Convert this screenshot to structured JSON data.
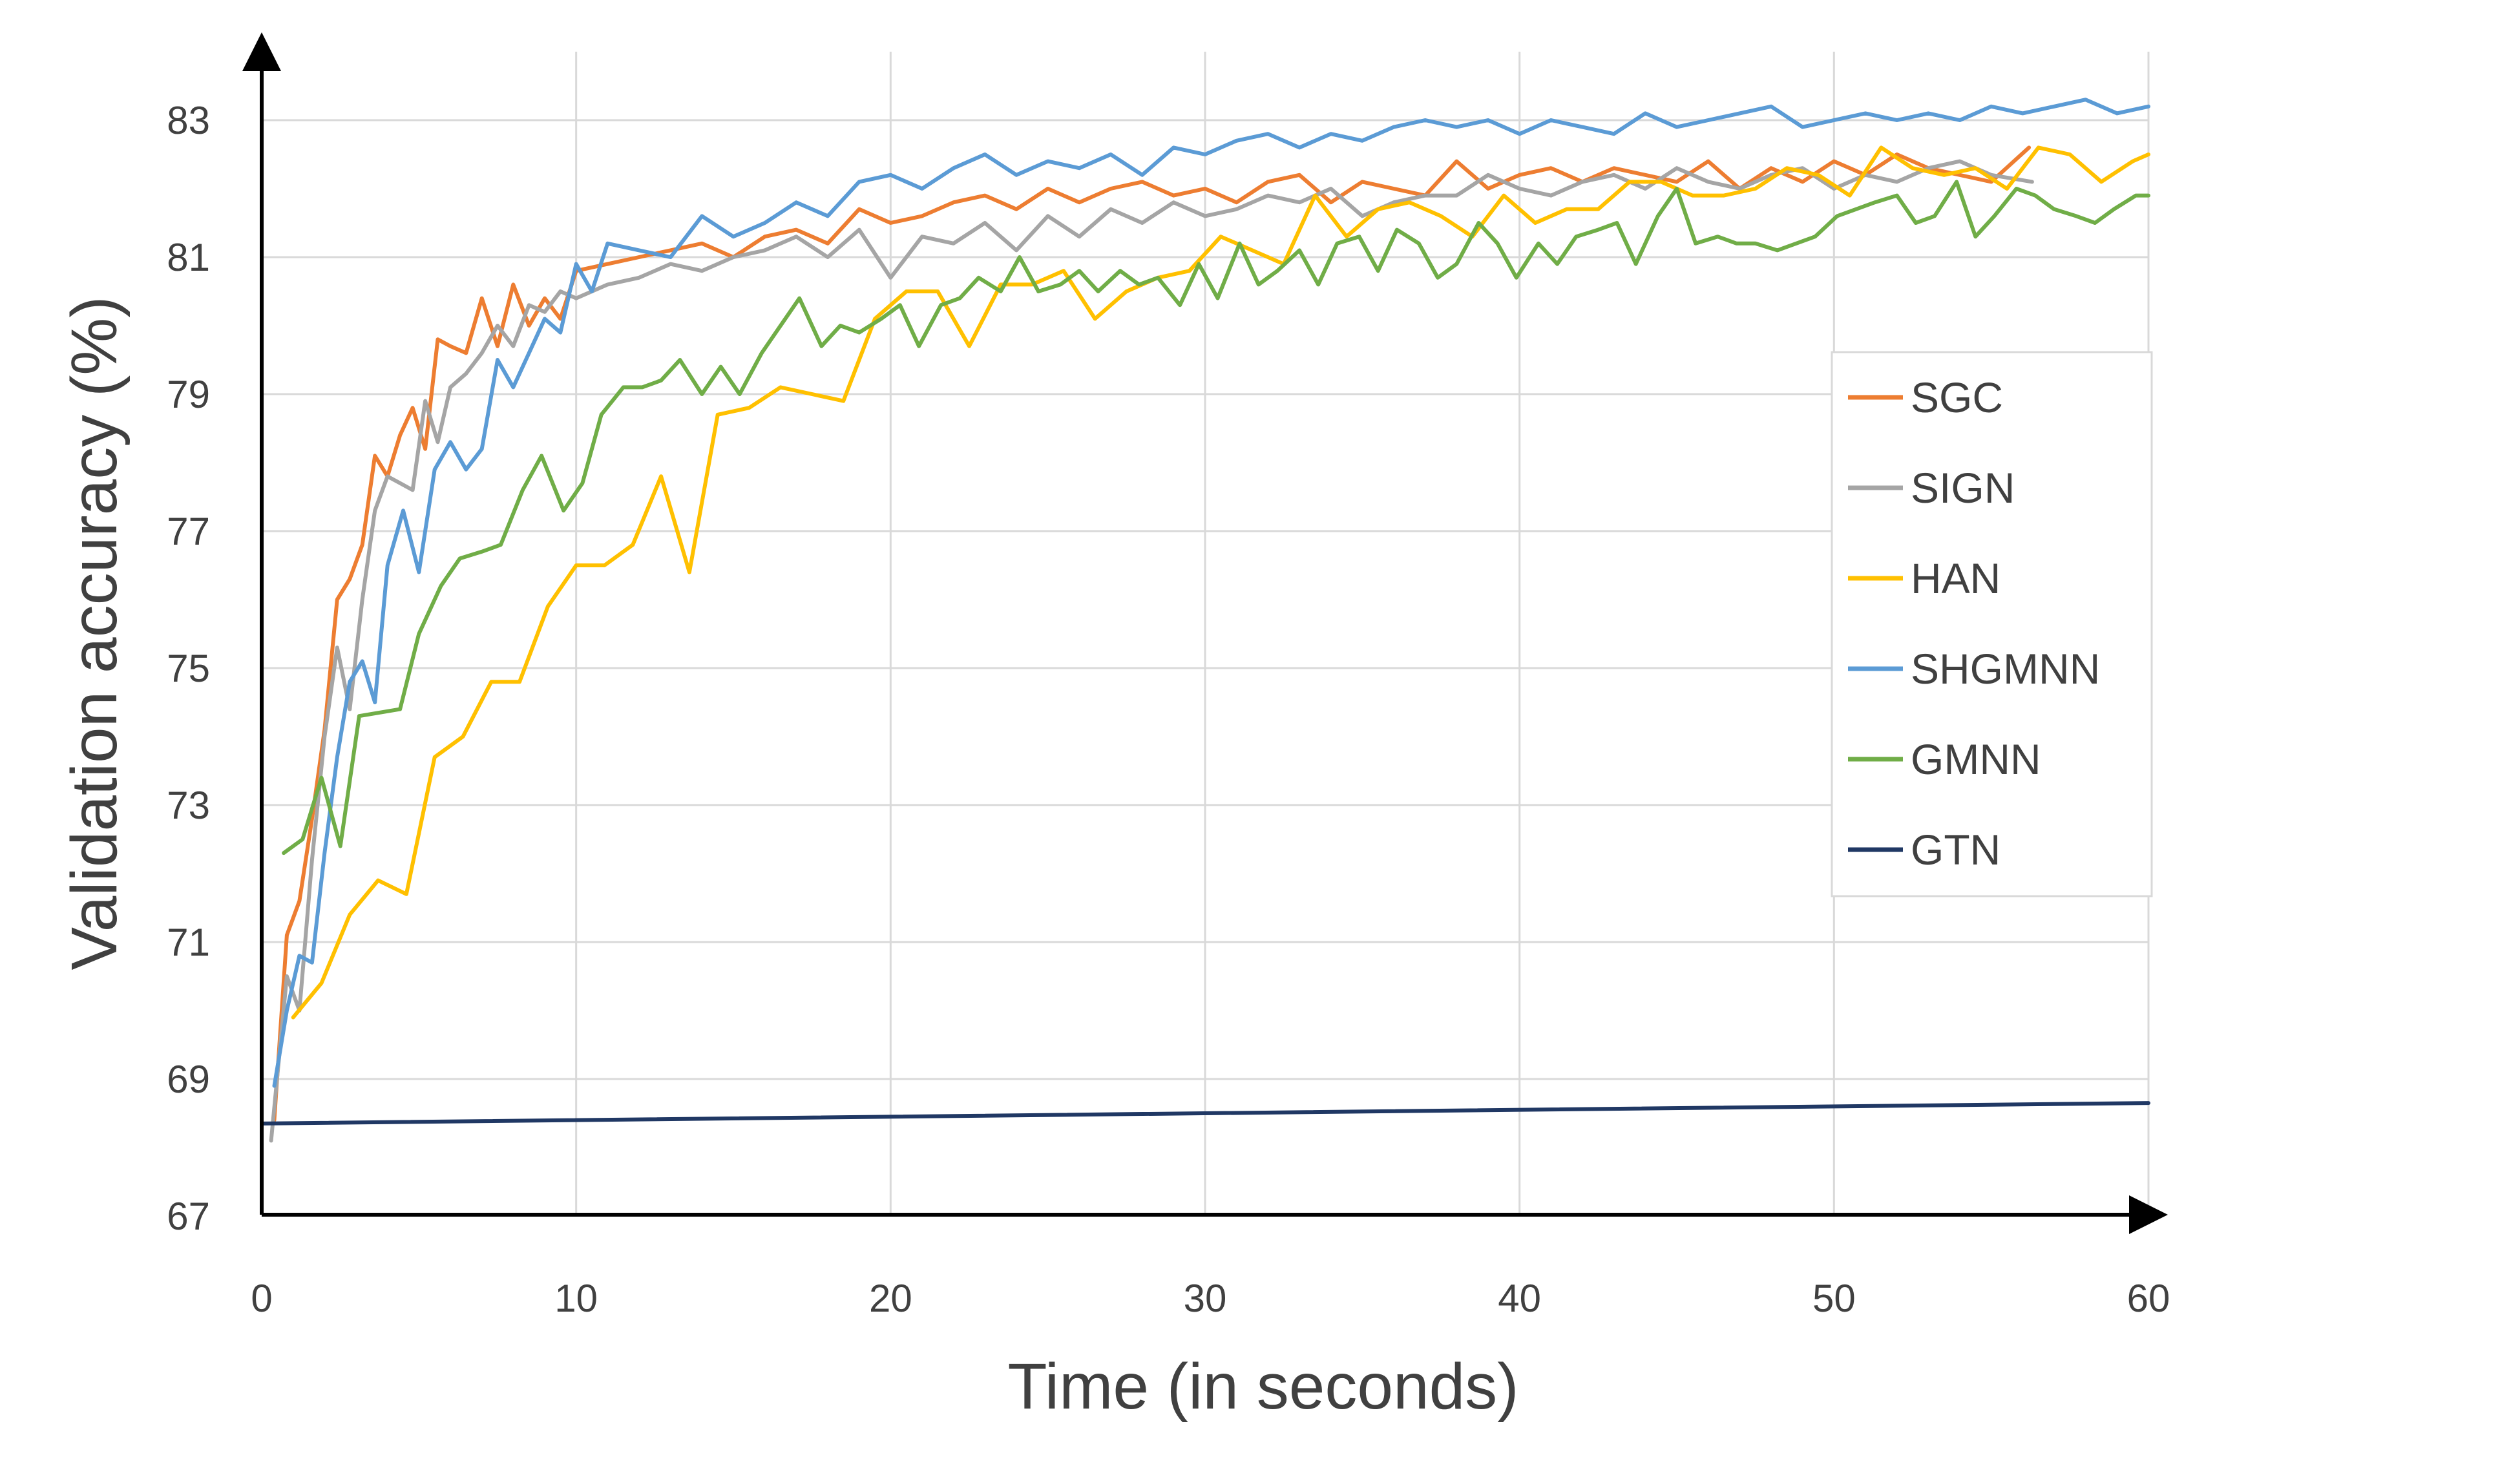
{
  "chart_data": {
    "type": "line",
    "title": "",
    "xlabel": "Time (in seconds)",
    "ylabel": "Validation accuracy (%)",
    "xlim": [
      0,
      60
    ],
    "ylim": [
      67,
      84
    ],
    "xticks": [
      0,
      10,
      20,
      30,
      40,
      50,
      60
    ],
    "yticks": [
      67,
      69,
      71,
      73,
      75,
      77,
      79,
      81,
      83
    ],
    "grid": true,
    "legend_position": "right",
    "series": [
      {
        "name": "SGC",
        "color": "#ed7d31",
        "x": [
          0.4,
          0.8,
          1.2,
          1.6,
          2.0,
          2.4,
          2.8,
          3.2,
          3.6,
          4.0,
          4.4,
          4.8,
          5.2,
          5.6,
          6.0,
          6.5,
          7.0,
          7.5,
          8.0,
          8.5,
          9.0,
          9.5,
          10,
          11,
          12,
          13,
          14,
          15,
          16,
          17,
          18,
          19,
          20,
          21,
          22,
          23,
          24,
          25,
          26,
          27,
          28,
          29,
          30,
          31,
          32,
          33,
          34,
          35,
          36,
          37,
          38,
          39,
          40,
          41,
          42,
          43,
          44,
          45,
          46,
          47,
          48,
          49,
          50,
          51,
          52,
          53,
          54,
          55,
          56.2
        ],
        "values": [
          68.4,
          71.1,
          71.6,
          72.8,
          74.1,
          76.0,
          76.3,
          76.8,
          78.1,
          77.8,
          78.4,
          78.8,
          78.2,
          79.8,
          79.7,
          79.6,
          80.4,
          79.7,
          80.6,
          80.0,
          80.4,
          80.1,
          80.8,
          80.9,
          81.0,
          81.1,
          81.2,
          81.0,
          81.3,
          81.4,
          81.2,
          81.7,
          81.5,
          81.6,
          81.8,
          81.9,
          81.7,
          82.0,
          81.8,
          82.0,
          82.1,
          81.9,
          82.0,
          81.8,
          82.1,
          82.2,
          81.8,
          82.1,
          82.0,
          81.9,
          82.4,
          82.0,
          82.2,
          82.3,
          82.1,
          82.3,
          82.2,
          82.1,
          82.4,
          82.0,
          82.3,
          82.1,
          82.4,
          82.2,
          82.5,
          82.3,
          82.2,
          82.1,
          82.6
        ]
      },
      {
        "name": "SIGN",
        "color": "#a5a5a5",
        "x": [
          0.3,
          0.8,
          1.2,
          1.6,
          2.0,
          2.4,
          2.8,
          3.2,
          3.6,
          4.0,
          4.4,
          4.8,
          5.2,
          5.6,
          6.0,
          6.5,
          7.0,
          7.5,
          8.0,
          8.5,
          9.0,
          9.5,
          10,
          11,
          12,
          13,
          14,
          15,
          16,
          17,
          18,
          19,
          20,
          21,
          22,
          23,
          24,
          25,
          26,
          27,
          28,
          29,
          30,
          31,
          32,
          33,
          34,
          35,
          36,
          37,
          38,
          39,
          40,
          41,
          42,
          43,
          44,
          45,
          46,
          47,
          48,
          49,
          50,
          51,
          52,
          53,
          54,
          55,
          56.3
        ],
        "values": [
          68.1,
          70.5,
          70.0,
          72.2,
          74.0,
          75.3,
          74.4,
          76.0,
          77.3,
          77.8,
          77.7,
          77.6,
          78.9,
          78.3,
          79.1,
          79.3,
          79.6,
          80.0,
          79.7,
          80.3,
          80.2,
          80.5,
          80.4,
          80.6,
          80.7,
          80.9,
          80.8,
          81.0,
          81.1,
          81.3,
          81.0,
          81.4,
          80.7,
          81.3,
          81.2,
          81.5,
          81.1,
          81.6,
          81.3,
          81.7,
          81.5,
          81.8,
          81.6,
          81.7,
          81.9,
          81.8,
          82.0,
          81.6,
          81.8,
          81.9,
          81.9,
          82.2,
          82.0,
          81.9,
          82.1,
          82.2,
          82.0,
          82.3,
          82.1,
          82.0,
          82.2,
          82.3,
          82.0,
          82.2,
          82.1,
          82.3,
          82.4,
          82.2,
          82.1
        ]
      },
      {
        "name": "HAN",
        "color": "#ffc000",
        "x": [
          1.0,
          1.9,
          2.8,
          3.7,
          4.6,
          5.5,
          6.4,
          7.3,
          8.2,
          9.1,
          10.0,
          10.9,
          11.8,
          12.7,
          13.6,
          14.5,
          15.5,
          16.5,
          17.5,
          18.5,
          19.5,
          20.5,
          21.5,
          22.5,
          23.5,
          24.5,
          25.5,
          26.5,
          27.5,
          28.5,
          29.5,
          30.5,
          31.5,
          32.5,
          33.5,
          34.5,
          35.5,
          36.5,
          37.5,
          38.5,
          39.5,
          40.5,
          41.5,
          42.5,
          43.5,
          44.5,
          45.5,
          46.5,
          47.5,
          48.5,
          49.5,
          50.5,
          51.5,
          52.5,
          53.5,
          54.5,
          55.5,
          56.5,
          57.5,
          58.5,
          59.5,
          60.0
        ],
        "values": [
          69.9,
          70.4,
          71.4,
          71.9,
          71.7,
          73.7,
          74.0,
          74.8,
          74.8,
          75.9,
          76.5,
          76.5,
          76.8,
          77.8,
          76.4,
          78.7,
          78.8,
          79.1,
          79.0,
          78.9,
          80.1,
          80.5,
          80.5,
          79.7,
          80.6,
          80.6,
          80.8,
          80.1,
          80.5,
          80.7,
          80.8,
          81.3,
          81.1,
          80.9,
          81.9,
          81.3,
          81.7,
          81.8,
          81.6,
          81.3,
          81.9,
          81.5,
          81.7,
          81.7,
          82.1,
          82.1,
          81.9,
          81.9,
          82.0,
          82.3,
          82.2,
          81.9,
          82.6,
          82.3,
          82.2,
          82.3,
          82.0,
          82.6,
          82.5,
          82.1,
          82.4,
          82.5
        ]
      },
      {
        "name": "SHGMNN",
        "color": "#5b9bd5",
        "x": [
          0.4,
          0.8,
          1.2,
          1.6,
          2.0,
          2.4,
          2.8,
          3.2,
          3.6,
          4.0,
          4.5,
          5.0,
          5.5,
          6.0,
          6.5,
          7.0,
          7.5,
          8.0,
          8.5,
          9.0,
          9.5,
          10,
          10.5,
          11,
          12,
          13,
          14,
          15,
          16,
          17,
          18,
          19,
          20,
          21,
          22,
          23,
          24,
          25,
          26,
          27,
          28,
          29,
          30,
          31,
          32,
          33,
          34,
          35,
          36,
          37,
          38,
          39,
          40,
          41,
          42,
          43,
          44,
          45,
          46,
          47,
          48,
          49,
          50,
          51,
          52,
          53,
          54,
          55,
          56,
          57,
          58,
          59,
          60
        ],
        "values": [
          68.9,
          70.0,
          70.8,
          70.7,
          72.3,
          73.7,
          74.8,
          75.1,
          74.5,
          76.5,
          77.3,
          76.4,
          77.9,
          78.3,
          77.9,
          78.2,
          79.5,
          79.1,
          79.6,
          80.1,
          79.9,
          80.9,
          80.5,
          81.2,
          81.1,
          81.0,
          81.6,
          81.3,
          81.5,
          81.8,
          81.6,
          82.1,
          82.2,
          82.0,
          82.3,
          82.5,
          82.2,
          82.4,
          82.3,
          82.5,
          82.2,
          82.6,
          82.5,
          82.7,
          82.8,
          82.6,
          82.8,
          82.7,
          82.9,
          83.0,
          82.9,
          83.0,
          82.8,
          83.0,
          82.9,
          82.8,
          83.1,
          82.9,
          83.0,
          83.1,
          83.2,
          82.9,
          83.0,
          83.1,
          83.0,
          83.1,
          83.0,
          83.2,
          83.1,
          83.2,
          83.3,
          83.1,
          83.2
        ]
      },
      {
        "name": "GMNN",
        "color": "#70ad47",
        "x": [
          0.7,
          1.3,
          1.9,
          2.5,
          3.1,
          4.4,
          5.0,
          5.7,
          6.3,
          7.0,
          7.6,
          8.3,
          8.9,
          9.6,
          10.2,
          10.8,
          11.5,
          12.1,
          12.7,
          13.3,
          14.0,
          14.6,
          15.2,
          15.9,
          16.5,
          17.1,
          17.8,
          18.4,
          19.0,
          19.7,
          20.3,
          20.9,
          21.6,
          22.2,
          22.8,
          23.5,
          24.1,
          24.7,
          25.4,
          26.0,
          26.6,
          27.3,
          27.9,
          28.5,
          29.2,
          29.8,
          30.4,
          31.1,
          31.7,
          32.3,
          33.0,
          33.6,
          34.2,
          34.9,
          35.5,
          36.1,
          36.8,
          37.4,
          38.0,
          38.7,
          39.3,
          39.9,
          40.6,
          41.2,
          41.8,
          42.5,
          43.1,
          43.7,
          44.4,
          45.0,
          45.6,
          46.3,
          46.9,
          47.5,
          48.2,
          48.8,
          49.4,
          50.1,
          50.7,
          51.3,
          52.0,
          52.6,
          53.2,
          53.9,
          54.5,
          55.1,
          55.8,
          56.4,
          57.0,
          57.7,
          58.3,
          58.9,
          59.6,
          60.0
        ],
        "values": [
          72.3,
          72.5,
          73.4,
          72.4,
          74.3,
          74.4,
          75.5,
          76.2,
          76.6,
          76.7,
          76.8,
          77.6,
          78.1,
          77.3,
          77.7,
          78.7,
          79.1,
          79.1,
          79.2,
          79.5,
          79.0,
          79.4,
          79.0,
          79.6,
          80.0,
          80.4,
          79.7,
          80.0,
          79.9,
          80.1,
          80.3,
          79.7,
          80.3,
          80.4,
          80.7,
          80.5,
          81.0,
          80.5,
          80.6,
          80.8,
          80.5,
          80.8,
          80.6,
          80.7,
          80.3,
          80.9,
          80.4,
          81.2,
          80.6,
          80.8,
          81.1,
          80.6,
          81.2,
          81.3,
          80.8,
          81.4,
          81.2,
          80.7,
          80.9,
          81.5,
          81.2,
          80.7,
          81.2,
          80.9,
          81.3,
          81.4,
          81.5,
          80.9,
          81.6,
          82.0,
          81.2,
          81.3,
          81.2,
          81.2,
          81.1,
          81.2,
          81.3,
          81.6,
          81.7,
          81.8,
          81.9,
          81.5,
          81.6,
          82.1,
          81.3,
          81.6,
          82.0,
          81.9,
          81.7,
          81.6,
          81.5,
          81.7,
          81.9,
          81.9
        ]
      },
      {
        "name": "GTN",
        "color": "#203864",
        "x": [
          0,
          60
        ],
        "values": [
          68.35,
          68.65
        ]
      }
    ]
  }
}
